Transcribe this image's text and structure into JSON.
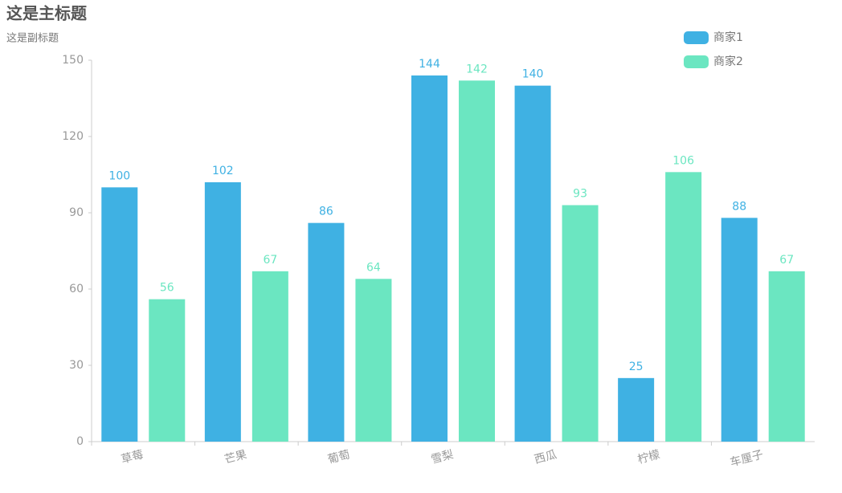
{
  "chart_data": {
    "type": "bar",
    "title": "这是主标题",
    "subtitle": "这是副标题",
    "categories": [
      "草莓",
      "芒果",
      "葡萄",
      "雪梨",
      "西瓜",
      "柠檬",
      "车厘子"
    ],
    "series": [
      {
        "name": "商家1",
        "color": "#3fb1e3",
        "values": [
          100,
          102,
          86,
          144,
          140,
          25,
          88
        ]
      },
      {
        "name": "商家2",
        "color": "#6be6c1",
        "values": [
          56,
          67,
          64,
          142,
          93,
          106,
          67
        ]
      }
    ],
    "ylim": [
      0,
      150
    ],
    "yticks": [
      0,
      30,
      60,
      90,
      120,
      150
    ],
    "grid": false,
    "legend": "top-right"
  }
}
